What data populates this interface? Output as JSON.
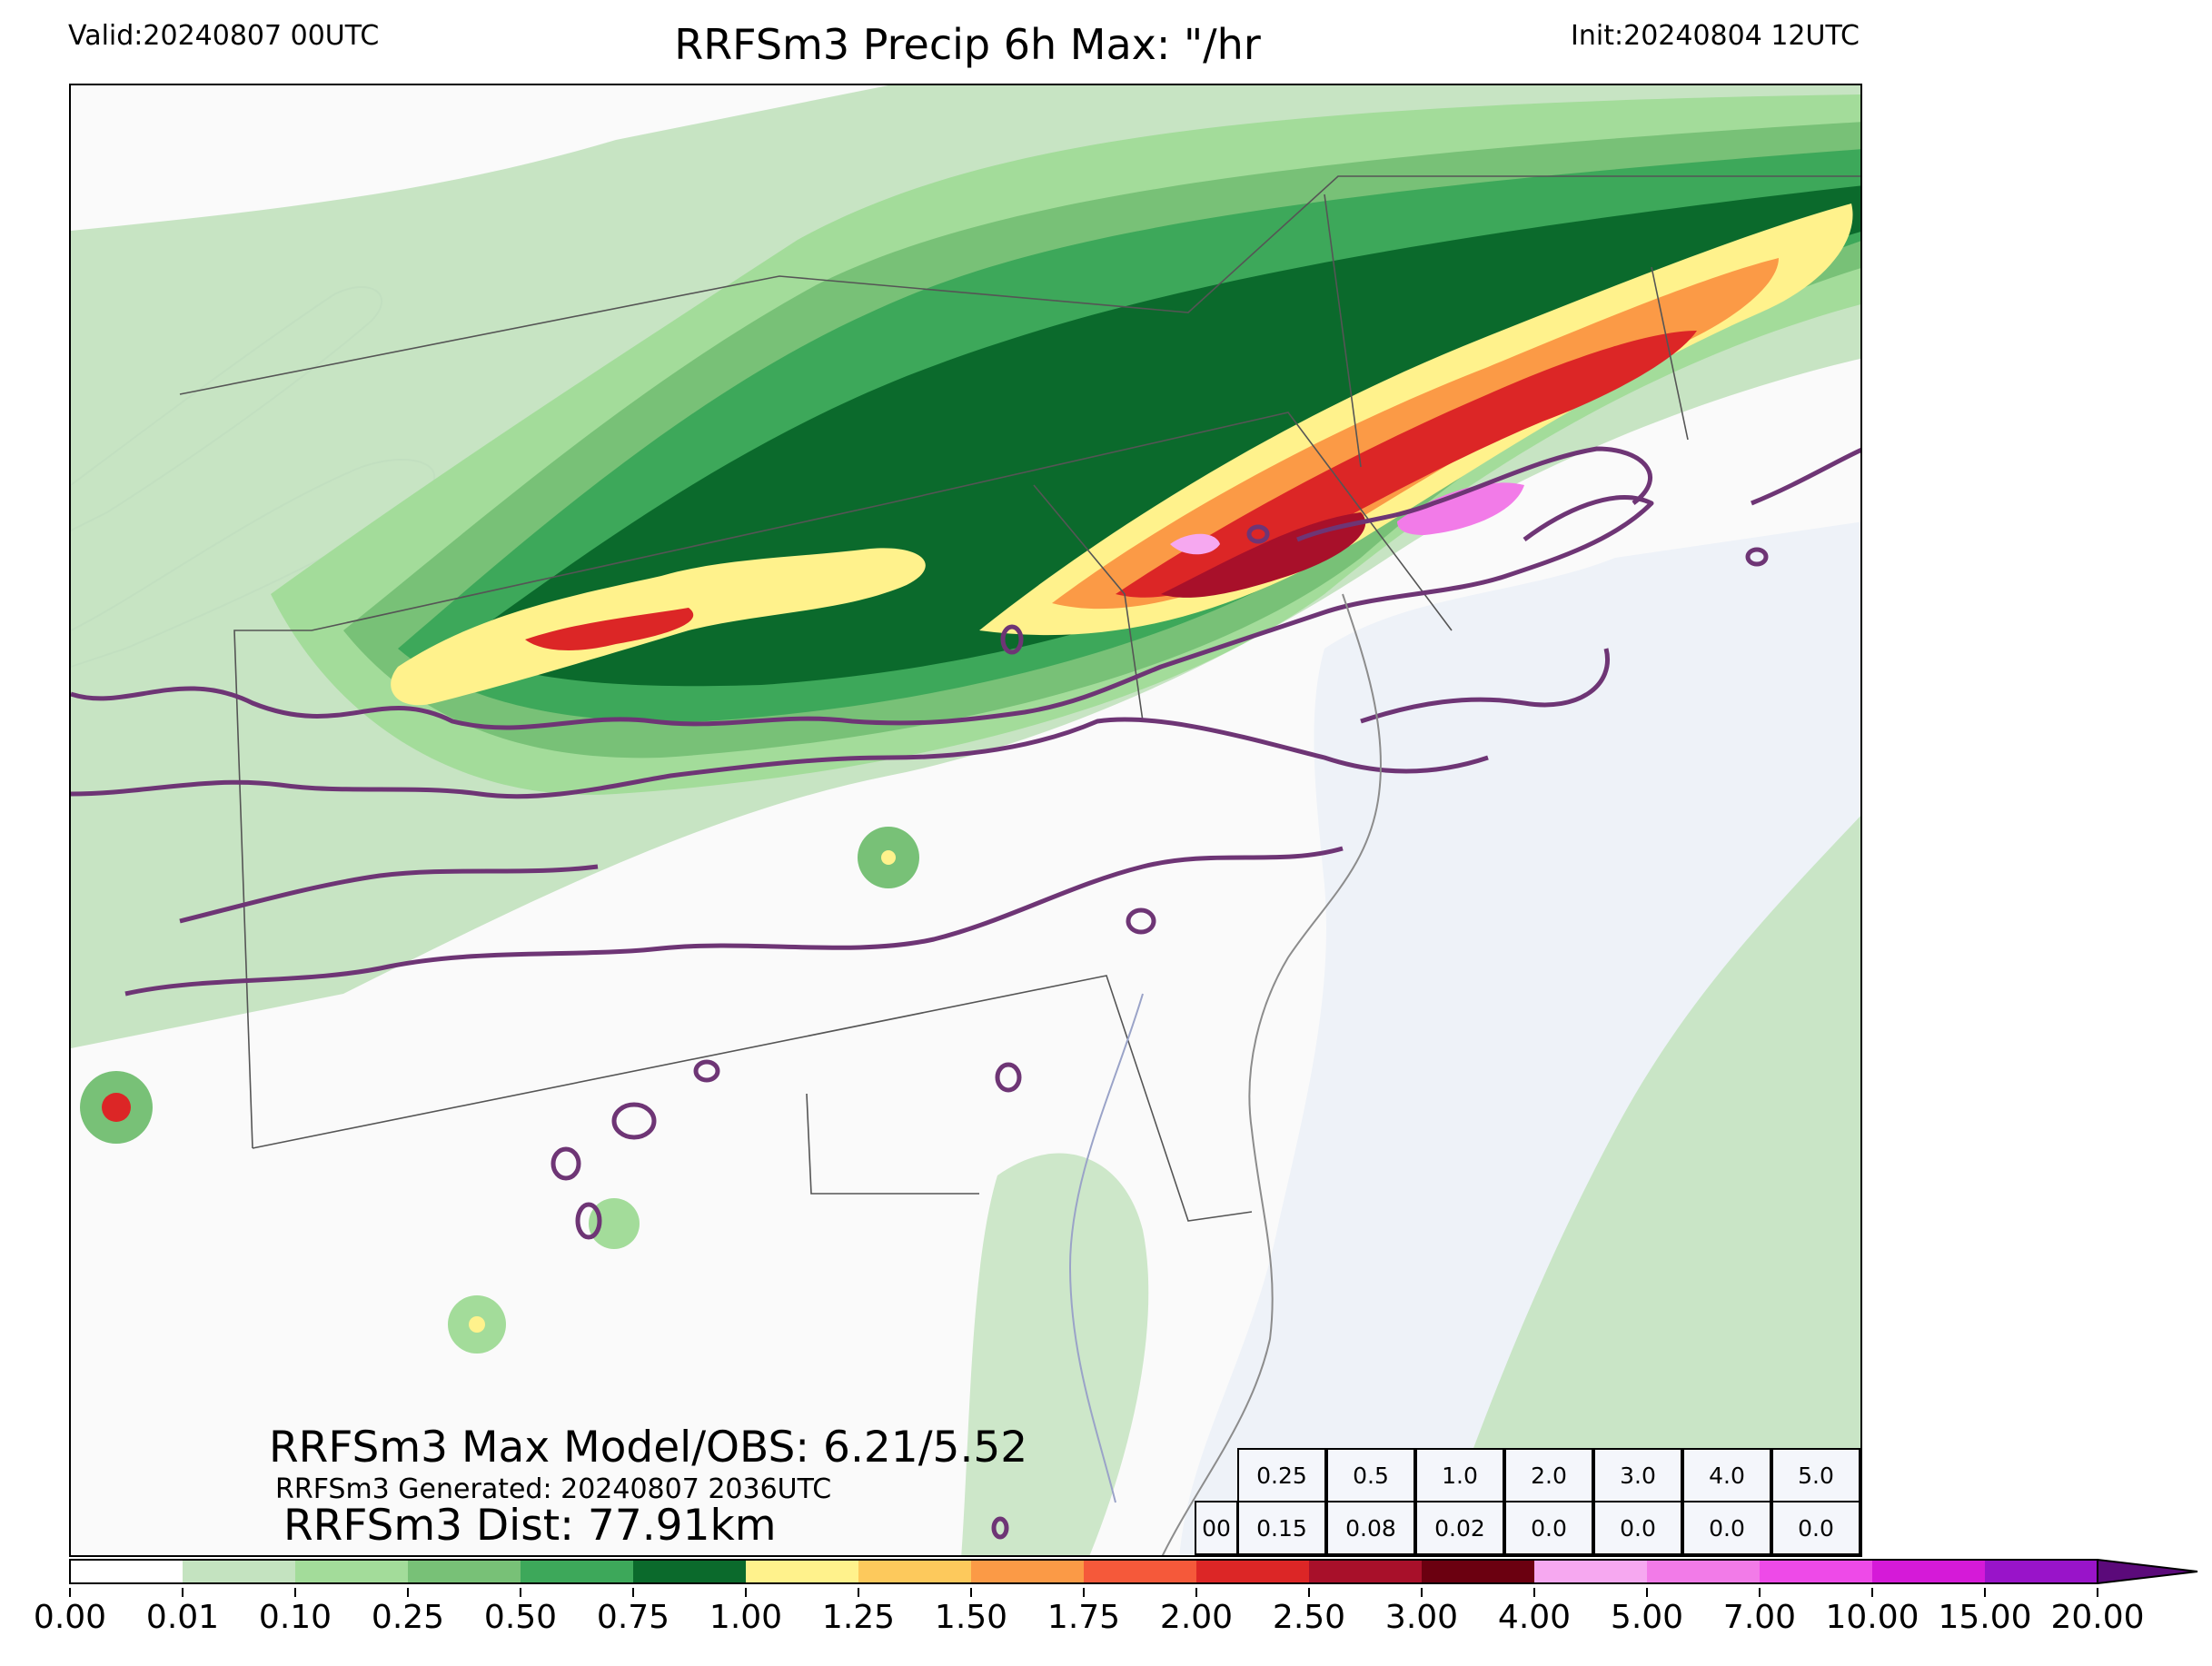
{
  "header": {
    "valid": "Valid:20240807 00UTC",
    "title": "RRFSm3 Precip 6h Max: \"/hr",
    "init": "Init:20240804 12UTC"
  },
  "annotations": {
    "max_line": "RRFSm3 Max Model/OBS: 6.21/5.52",
    "generated_line": "RRFSm3 Generated: 20240807 2036UTC",
    "dist_line": "RRFSm3 Dist: 77.91km"
  },
  "stats_table": {
    "thresholds": [
      "0.25",
      "0.5",
      "1.0",
      "2.0",
      "3.0",
      "4.0",
      "5.0"
    ],
    "row_label": "00",
    "values": [
      "0.15",
      "0.08",
      "0.02",
      "0.0",
      "0.0",
      "0.0",
      "0.0"
    ]
  },
  "colorbar": {
    "ticks": [
      "0.00",
      "0.01",
      "0.10",
      "0.25",
      "0.50",
      "0.75",
      "1.00",
      "1.25",
      "1.50",
      "1.75",
      "2.00",
      "2.50",
      "3.00",
      "4.00",
      "5.00",
      "7.00",
      "10.00",
      "15.00",
      "20.00"
    ],
    "colors": [
      "#ffffff",
      "#c4e3c0",
      "#a3dc9a",
      "#78c177",
      "#3da85a",
      "#0b6a2c",
      "#fff28c",
      "#fdc95c",
      "#fb9a46",
      "#f5593a",
      "#dc2626",
      "#a8102a",
      "#6b0010",
      "#f6a8f0",
      "#f27be8",
      "#ee4ae8",
      "#d51ad8",
      "#9914c9"
    ],
    "extend_color": "#5b0a7a"
  },
  "map": {
    "ocean_color": "#eef2f8",
    "land_color": "#fafafa",
    "contour_color": "#6e3575"
  }
}
